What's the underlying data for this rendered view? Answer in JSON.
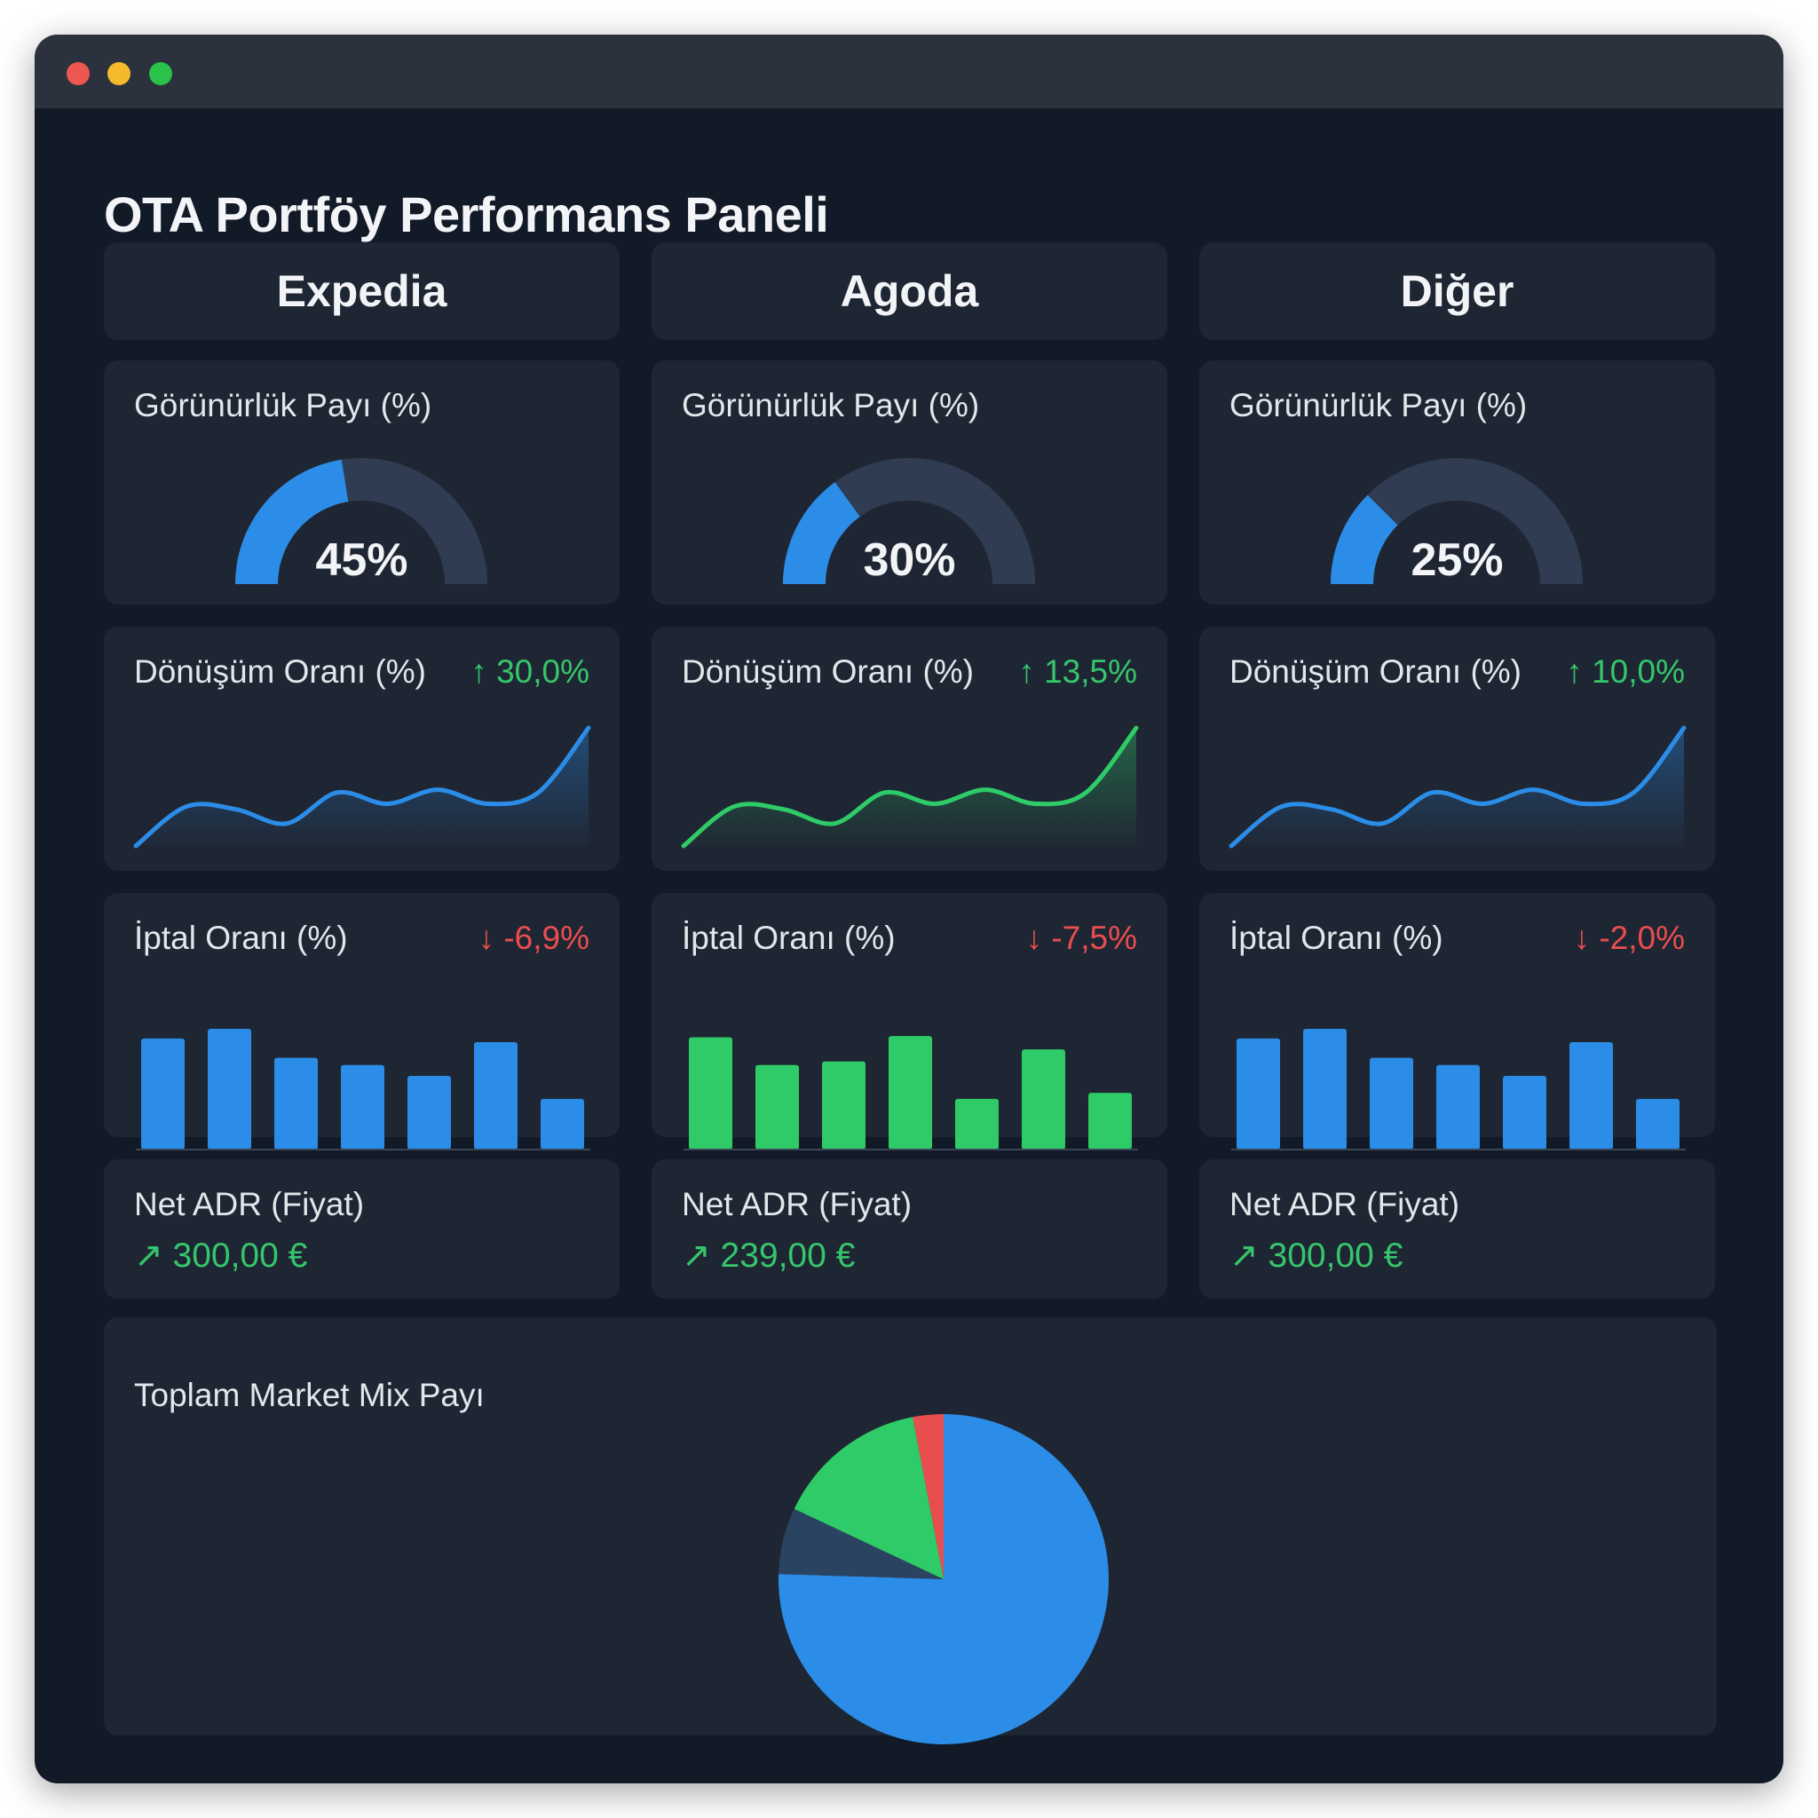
{
  "page": {
    "title": "OTA Portföy Performans Paneli"
  },
  "colors": {
    "blue": "#2b8de7",
    "green": "#2ecb68",
    "red": "#e94e4f",
    "navy": "#2a4361",
    "gauge_track": "#2f3c52"
  },
  "channels": [
    {
      "name": "Expedia",
      "accent": "#2b8de7",
      "visibility": {
        "label": "Görünürlük Payı (%)",
        "value": 45,
        "display": "45%"
      },
      "conversion": {
        "label": "Dönüşüm Oranı (%)",
        "arrow": "↑",
        "change": "30,0%",
        "trend_icon": "arrow-up-icon",
        "series": [
          3,
          17,
          16,
          11,
          22,
          18,
          23,
          18,
          22,
          45
        ]
      },
      "cancellation": {
        "label": "İptal Oranı (%)",
        "arrow": "↓",
        "change": "-6,9%",
        "trend_icon": "arrow-down-icon",
        "bars": [
          92,
          100,
          76,
          70,
          61,
          89,
          42
        ]
      },
      "adr": {
        "label": "Net ADR (Fiyat)",
        "arrow": "↗",
        "value": "300,00 €"
      }
    },
    {
      "name": "Agoda",
      "accent": "#2ecb68",
      "visibility": {
        "label": "Görünürlük Payı (%)",
        "value": 30,
        "display": "30%"
      },
      "conversion": {
        "label": "Dönüşüm Oranı (%)",
        "arrow": "↑",
        "change": "13,5%",
        "trend_icon": "arrow-up-icon",
        "series": [
          3,
          17,
          16,
          11,
          22,
          18,
          23,
          18,
          22,
          45
        ]
      },
      "cancellation": {
        "label": "İptal Oranı (%)",
        "arrow": "↓",
        "change": "-7,5%",
        "trend_icon": "arrow-down-icon",
        "bars": [
          93,
          70,
          73,
          94,
          42,
          83,
          47
        ]
      },
      "adr": {
        "label": "Net ADR (Fiyat)",
        "arrow": "↗",
        "value": "239,00 €"
      }
    },
    {
      "name": "Diğer",
      "accent": "#2b8de7",
      "visibility": {
        "label": "Görünürlük Payı (%)",
        "value": 25,
        "display": "25%"
      },
      "conversion": {
        "label": "Dönüşüm Oranı (%)",
        "arrow": "↑",
        "change": "10,0%",
        "trend_icon": "arrow-up-icon",
        "series": [
          3,
          17,
          16,
          11,
          22,
          18,
          23,
          18,
          22,
          45
        ]
      },
      "cancellation": {
        "label": "İptal Oranı (%)",
        "arrow": "↓",
        "change": "-2,0%",
        "trend_icon": "arrow-down-icon",
        "bars": [
          92,
          100,
          76,
          70,
          61,
          89,
          42
        ]
      },
      "adr": {
        "label": "Net ADR (Fiyat)",
        "arrow": "↗",
        "value": "300,00 €"
      }
    }
  ],
  "market_mix": {
    "title": "Toplam Market Mix Payı"
  },
  "chart_data": {
    "type": "pie",
    "title": "Toplam Market Mix Payı",
    "slices": [
      {
        "value": 75.5,
        "color": "#2b8de7"
      },
      {
        "value": 6.5,
        "color": "#2a4361"
      },
      {
        "value": 15,
        "color": "#2ecb68"
      },
      {
        "value": 3,
        "color": "#e94e4f"
      }
    ]
  }
}
